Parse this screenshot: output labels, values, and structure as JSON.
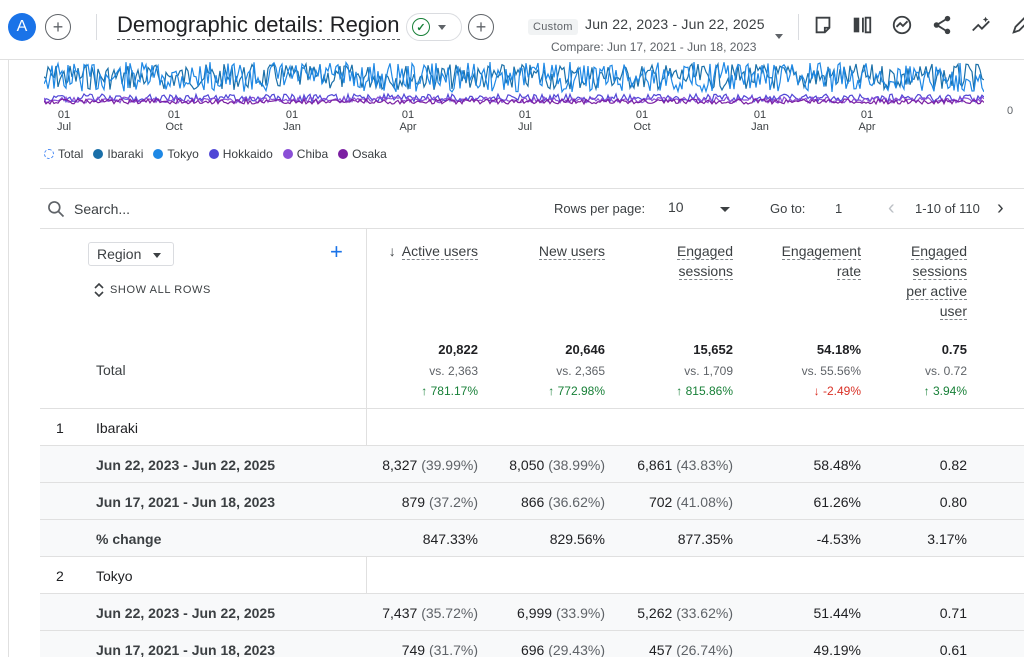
{
  "header": {
    "avatar_letter": "A",
    "title": "Demographic details: Region",
    "custom_badge": "Custom",
    "date_range": "Jun 22, 2023 - Jun 22, 2025",
    "compare_range": "Compare: Jun 17, 2021 - Jun 18, 2023",
    "toolbar_icons": [
      "edit-report-icon",
      "compare-icon",
      "insights-icon",
      "share-icon",
      "trend-icon",
      "pencil-icon"
    ]
  },
  "chart": {
    "x_ticks": [
      {
        "day": "01",
        "month": "Jul"
      },
      {
        "day": "01",
        "month": "Oct"
      },
      {
        "day": "01",
        "month": "Jan"
      },
      {
        "day": "01",
        "month": "Apr"
      },
      {
        "day": "01",
        "month": "Jul"
      },
      {
        "day": "01",
        "month": "Oct"
      },
      {
        "day": "01",
        "month": "Jan"
      },
      {
        "day": "01",
        "month": "Apr"
      }
    ],
    "y_zero": "0",
    "legend": [
      {
        "label": "Total",
        "color": "#4285f4"
      },
      {
        "label": "Ibaraki",
        "color": "#1a6fa8"
      },
      {
        "label": "Tokyo",
        "color": "#1e88e5"
      },
      {
        "label": "Hokkaido",
        "color": "#4f46d6"
      },
      {
        "label": "Chiba",
        "color": "#8a4fd6"
      },
      {
        "label": "Osaka",
        "color": "#7b1fa2"
      }
    ]
  },
  "toolbar": {
    "search_placeholder": "Search...",
    "rows_per_page_label": "Rows per page:",
    "rows_per_page_value": "10",
    "goto_label": "Go to:",
    "goto_value": "1",
    "pager_text": "1-10 of 110"
  },
  "table": {
    "dimension_label": "Region",
    "show_all_rows": "SHOW ALL ROWS",
    "total_label": "Total",
    "columns": [
      {
        "title": "Active users",
        "lines": [
          "Active users"
        ],
        "total": "20,822",
        "vs": "vs. 2,363",
        "change": "↑ 781.17%",
        "dir": "up"
      },
      {
        "title": "New users",
        "lines": [
          "New users"
        ],
        "total": "20,646",
        "vs": "vs. 2,365",
        "change": "↑ 772.98%",
        "dir": "up"
      },
      {
        "title": "Engaged sessions",
        "lines": [
          "Engaged",
          "sessions"
        ],
        "total": "15,652",
        "vs": "vs. 1,709",
        "change": "↑ 815.86%",
        "dir": "up"
      },
      {
        "title": "Engagement rate",
        "lines": [
          "Engagement",
          "rate"
        ],
        "total": "54.18%",
        "vs": "vs. 55.56%",
        "change": "↓ -2.49%",
        "dir": "down"
      },
      {
        "title": "Engaged sessions per active user",
        "lines": [
          "Engaged",
          "sessions",
          "per active",
          "user"
        ],
        "total": "0.75",
        "vs": "vs. 0.72",
        "change": "↑ 3.94%",
        "dir": "up"
      }
    ],
    "rows": [
      {
        "type": "group",
        "index": "1",
        "label": "Ibaraki"
      },
      {
        "type": "data",
        "shaded": true,
        "label": "Jun 22, 2023 - Jun 22, 2025",
        "cells": [
          {
            "v": "8,327",
            "p": "(39.99%)"
          },
          {
            "v": "8,050",
            "p": "(38.99%)"
          },
          {
            "v": "6,861",
            "p": "(43.83%)"
          },
          {
            "v": "58.48%",
            "p": ""
          },
          {
            "v": "0.82",
            "p": ""
          }
        ]
      },
      {
        "type": "data",
        "shaded": true,
        "label": "Jun 17, 2021 - Jun 18, 2023",
        "cells": [
          {
            "v": "879",
            "p": "(37.2%)"
          },
          {
            "v": "866",
            "p": "(36.62%)"
          },
          {
            "v": "702",
            "p": "(41.08%)"
          },
          {
            "v": "61.26%",
            "p": ""
          },
          {
            "v": "0.80",
            "p": ""
          }
        ]
      },
      {
        "type": "data",
        "shaded": true,
        "label": "% change",
        "cells": [
          {
            "v": "847.33%",
            "p": ""
          },
          {
            "v": "829.56%",
            "p": ""
          },
          {
            "v": "877.35%",
            "p": ""
          },
          {
            "v": "-4.53%",
            "p": ""
          },
          {
            "v": "3.17%",
            "p": ""
          }
        ]
      },
      {
        "type": "group",
        "index": "2",
        "label": "Tokyo"
      },
      {
        "type": "data",
        "shaded": true,
        "label": "Jun 22, 2023 - Jun 22, 2025",
        "cells": [
          {
            "v": "7,437",
            "p": "(35.72%)"
          },
          {
            "v": "6,999",
            "p": "(33.9%)"
          },
          {
            "v": "5,262",
            "p": "(33.62%)"
          },
          {
            "v": "51.44%",
            "p": ""
          },
          {
            "v": "0.71",
            "p": ""
          }
        ]
      },
      {
        "type": "data",
        "shaded": true,
        "label": "Jun 17, 2021 - Jun 18, 2023",
        "cells": [
          {
            "v": "749",
            "p": "(31.7%)"
          },
          {
            "v": "696",
            "p": "(29.43%)"
          },
          {
            "v": "457",
            "p": "(26.74%)"
          },
          {
            "v": "49.19%",
            "p": ""
          },
          {
            "v": "0.61",
            "p": ""
          }
        ]
      }
    ]
  }
}
